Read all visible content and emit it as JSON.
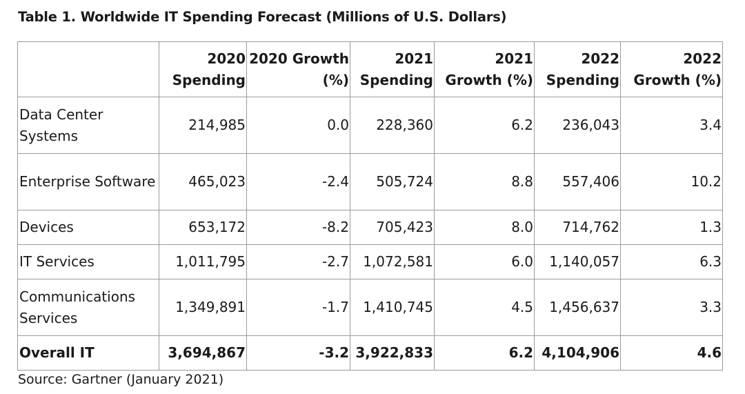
{
  "title": "Table 1. Worldwide IT Spending Forecast (Millions of U.S. Dollars)",
  "headers": {
    "segment": "",
    "s2020": "2020 Spending",
    "g2020": "2020 Growth (%)",
    "s2021": "2021 Spending",
    "g2021": "2021 Growth (%)",
    "s2022": "2022 Spending",
    "g2022": "2022 Growth (%)"
  },
  "rows": [
    {
      "segment": "Data Center Systems",
      "s2020": "214,985",
      "g2020": "0.0",
      "s2021": "228,360",
      "g2021": "6.2",
      "s2022": "236,043",
      "g2022": "3.4"
    },
    {
      "segment": "Enterprise Software",
      "s2020": "465,023",
      "g2020": "-2.4",
      "s2021": "505,724",
      "g2021": "8.8",
      "s2022": "557,406",
      "g2022": "10.2"
    },
    {
      "segment": "Devices",
      "s2020": "653,172",
      "g2020": "-8.2",
      "s2021": "705,423",
      "g2021": "8.0",
      "s2022": "714,762",
      "g2022": "1.3"
    },
    {
      "segment": "IT Services",
      "s2020": "1,011,795",
      "g2020": "-2.7",
      "s2021": "1,072,581",
      "g2021": "6.0",
      "s2022": "1,140,057",
      "g2022": "6.3"
    },
    {
      "segment": "Communications Services",
      "s2020": "1,349,891",
      "g2020": "-1.7",
      "s2021": "1,410,745",
      "g2021": "4.5",
      "s2022": "1,456,637",
      "g2022": "3.3"
    },
    {
      "segment": "Overall IT",
      "s2020": "3,694,867",
      "g2020": "-3.2",
      "s2021": "3,922,833",
      "g2021": "6.2",
      "s2022": "4,104,906",
      "g2022": "4.6"
    }
  ],
  "source": "Source: Gartner (January 2021)",
  "chart_data": {
    "type": "table",
    "title": "Table 1. Worldwide IT Spending Forecast (Millions of U.S. Dollars)",
    "columns": [
      "",
      "2020 Spending",
      "2020 Growth (%)",
      "2021 Spending",
      "2021 Growth (%)",
      "2022 Spending",
      "2022 Growth (%)"
    ],
    "rows": [
      [
        "Data Center Systems",
        214985,
        0.0,
        228360,
        6.2,
        236043,
        3.4
      ],
      [
        "Enterprise Software",
        465023,
        -2.4,
        505724,
        8.8,
        557406,
        10.2
      ],
      [
        "Devices",
        653172,
        -8.2,
        705423,
        8.0,
        714762,
        1.3
      ],
      [
        "IT Services",
        1011795,
        -2.7,
        1072581,
        6.0,
        1140057,
        6.3
      ],
      [
        "Communications Services",
        1349891,
        -1.7,
        1410745,
        4.5,
        1456637,
        3.3
      ],
      [
        "Overall IT",
        3694867,
        -3.2,
        3922833,
        6.2,
        4104906,
        4.6
      ]
    ]
  }
}
